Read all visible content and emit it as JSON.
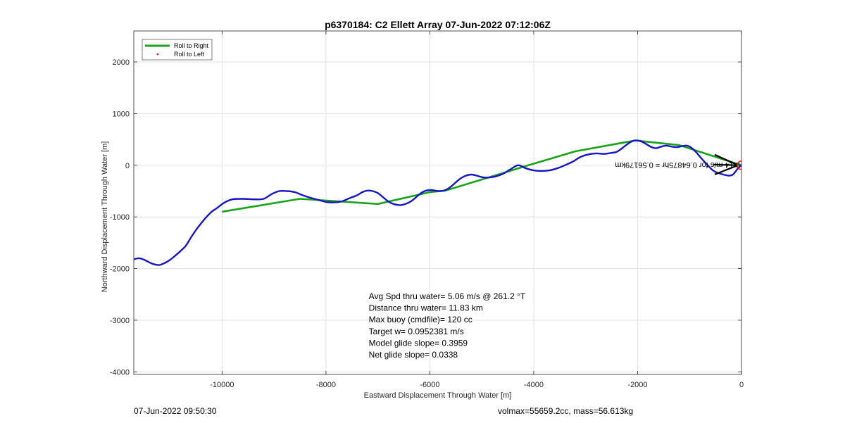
{
  "colors": {
    "roll_right": "#1aa31a",
    "roll_left": "#e8201e",
    "track": "#1515c8",
    "grid": "#e1e1e1",
    "axis": "#262626",
    "end_marker": "#e8201e"
  },
  "footer": {
    "left": "07-Jun-2022 09:50:30",
    "right": "volmax=55659.2cc, mass=56.613kg"
  },
  "chart_data": {
    "type": "line",
    "title": "p6370184: C2 Ellett Array 07-Jun-2022 07:12:06Z",
    "xlabel": "Eastward Displacement Through Water [m]",
    "ylabel": "Northward Displacement Through Water [m]",
    "xlim": [
      -11700,
      0
    ],
    "ylim": [
      -4050,
      2600
    ],
    "xticks": [
      -10000,
      -8000,
      -6000,
      -4000,
      -2000,
      0
    ],
    "yticks": [
      -4000,
      -3000,
      -2000,
      -1000,
      0,
      1000,
      2000
    ],
    "xtick_labels": [
      "-10000",
      "-8000",
      "-6000",
      "-4000",
      "-2000",
      "0"
    ],
    "ytick_labels": [
      "-4000",
      "-3000",
      "-2000",
      "-1000",
      "0",
      "1000",
      "2000"
    ],
    "grid": true,
    "legend": {
      "position": "top-left",
      "entries": [
        "Roll to Right",
        "Roll to Left"
      ]
    },
    "series": [
      {
        "name": "Roll to Right",
        "style": "line",
        "x": [
          0,
          -1200,
          -2050,
          -3200,
          -4100,
          -5700,
          -6000,
          -7000,
          -8500,
          -10000
        ],
        "y": [
          0,
          390,
          480,
          270,
          0,
          -490,
          -520,
          -750,
          -650,
          -900
        ]
      },
      {
        "name": "Roll to Left",
        "style": "point",
        "x": [],
        "y": []
      },
      {
        "style": "line",
        "x": [
          0,
          -60,
          -120,
          -180,
          -250,
          -350,
          -450,
          -550,
          -650,
          -760,
          -880,
          -980,
          -1050,
          -1150,
          -1240,
          -1340,
          -1450,
          -1550,
          -1650,
          -1750,
          -1850,
          -1950,
          -2050,
          -2150,
          -2300,
          -2400,
          -2500,
          -2650,
          -2800,
          -2950,
          -3100,
          -3250,
          -3400,
          -3550,
          -3700,
          -3850,
          -4000,
          -4150,
          -4300,
          -4450,
          -4600,
          -4750,
          -4900,
          -5000,
          -5100,
          -5200,
          -5300,
          -5400,
          -5500,
          -5600,
          -5700,
          -5800,
          -5900,
          -6000,
          -6100,
          -6200,
          -6300,
          -6400,
          -6550,
          -6700,
          -6800,
          -6900,
          -7000,
          -7100,
          -7200,
          -7300,
          -7400,
          -7550,
          -7700,
          -7850,
          -8000,
          -8150,
          -8300,
          -8450,
          -8600,
          -8750,
          -8900,
          -9050,
          -9200,
          -9400,
          -9600,
          -9800,
          -9950,
          -10100,
          -10200,
          -10300,
          -10400,
          -10500,
          -10600,
          -10700,
          -10800,
          -10900,
          -11000,
          -11100,
          -11200,
          -11300,
          -11400,
          -11500,
          -11600,
          -11700
        ],
        "y": [
          0,
          -50,
          -130,
          -190,
          -200,
          -180,
          -150,
          -100,
          0,
          120,
          260,
          350,
          380,
          370,
          350,
          360,
          380,
          360,
          330,
          360,
          420,
          470,
          480,
          440,
          330,
          260,
          240,
          220,
          230,
          210,
          160,
          70,
          0,
          -60,
          -100,
          -110,
          -100,
          -60,
          0,
          -80,
          -170,
          -220,
          -240,
          -230,
          -200,
          -180,
          -200,
          -250,
          -330,
          -420,
          -480,
          -500,
          -490,
          -480,
          -500,
          -560,
          -650,
          -720,
          -770,
          -750,
          -700,
          -620,
          -540,
          -500,
          -490,
          -520,
          -580,
          -640,
          -700,
          -720,
          -710,
          -670,
          -630,
          -580,
          -520,
          -500,
          -500,
          -560,
          -650,
          -660,
          -650,
          -660,
          -720,
          -830,
          -900,
          -1000,
          -1120,
          -1250,
          -1400,
          -1560,
          -1660,
          -1750,
          -1830,
          -1890,
          -1930,
          -1920,
          -1880,
          -1830,
          -1800,
          -1820
        ]
      }
    ],
    "end_marker": {
      "x": 0,
      "y": 0
    },
    "annotations": [
      {
        "text": "Avg Spd thru water=  5.06 m/s @ 261.2 °T",
        "x": -7000,
        "y": -2500
      },
      {
        "text": "Distance thru water= 11.83 km",
        "x": -7000,
        "y": -2750
      },
      {
        "text": "Max buoy (cmdfile)= 120 cc",
        "x": -7000,
        "y": -2950
      },
      {
        "text": "Target w= 0.0952381 m/s",
        "x": -7000,
        "y": -3150
      },
      {
        "text": "Model glide slope= 0.3959",
        "x": -7000,
        "y": -3350
      },
      {
        "text": "Net glide slope= 0.0338",
        "x": -7000,
        "y": -3580
      }
    ],
    "arrow_label": "0.14 m/s for 0.64875hr = 0.56179km",
    "arrow_label_rotation_deg": 180
  }
}
